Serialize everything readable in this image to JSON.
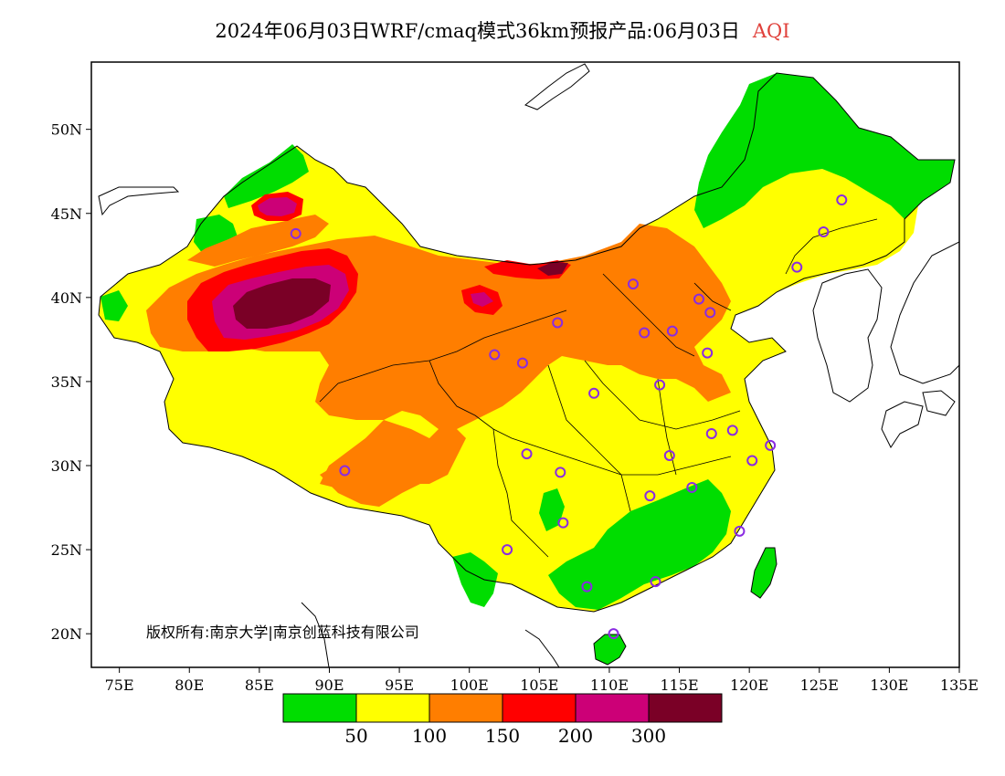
{
  "title": {
    "text": "2024年06月03日WRF/cmaq模式36km预报产品:06月03日",
    "variable": "AQI",
    "variable_color": "#e0403a"
  },
  "map": {
    "extent": {
      "lon_min": 73,
      "lon_max": 135,
      "lat_min": 18,
      "lat_max": 54
    },
    "x_ticks": [
      "75E",
      "80E",
      "85E",
      "90E",
      "95E",
      "100E",
      "105E",
      "110E",
      "115E",
      "120E",
      "125E",
      "130E",
      "135E"
    ],
    "y_ticks": [
      "50N",
      "45N",
      "40N",
      "35N",
      "30N",
      "25N",
      "20N"
    ],
    "copyright": "版权所有:南京大学|南京创蓝科技有限公司"
  },
  "legend": {
    "colors": [
      "#00dd00",
      "#ffff00",
      "#ff7e00",
      "#ff0000",
      "#cc0077",
      "#7a0026"
    ],
    "labels": [
      "50",
      "100",
      "150",
      "200",
      "300"
    ]
  },
  "stations": [
    {
      "lon": 87.6,
      "lat": 43.8
    },
    {
      "lon": 91.1,
      "lat": 29.7
    },
    {
      "lon": 101.8,
      "lat": 36.6
    },
    {
      "lon": 103.8,
      "lat": 36.1
    },
    {
      "lon": 106.3,
      "lat": 38.5
    },
    {
      "lon": 111.7,
      "lat": 40.8
    },
    {
      "lon": 112.5,
      "lat": 37.9
    },
    {
      "lon": 114.5,
      "lat": 38.0
    },
    {
      "lon": 116.4,
      "lat": 39.9
    },
    {
      "lon": 117.2,
      "lat": 39.1
    },
    {
      "lon": 117.0,
      "lat": 36.7
    },
    {
      "lon": 113.6,
      "lat": 34.8
    },
    {
      "lon": 108.9,
      "lat": 34.3
    },
    {
      "lon": 104.1,
      "lat": 30.7
    },
    {
      "lon": 106.5,
      "lat": 29.6
    },
    {
      "lon": 117.3,
      "lat": 31.9
    },
    {
      "lon": 118.8,
      "lat": 32.1
    },
    {
      "lon": 120.2,
      "lat": 30.3
    },
    {
      "lon": 121.5,
      "lat": 31.2
    },
    {
      "lon": 114.3,
      "lat": 30.6
    },
    {
      "lon": 112.9,
      "lat": 28.2
    },
    {
      "lon": 115.9,
      "lat": 28.7
    },
    {
      "lon": 119.3,
      "lat": 26.1
    },
    {
      "lon": 106.7,
      "lat": 26.6
    },
    {
      "lon": 102.7,
      "lat": 25.0
    },
    {
      "lon": 108.4,
      "lat": 22.8
    },
    {
      "lon": 113.3,
      "lat": 23.1
    },
    {
      "lon": 110.3,
      "lat": 20.0
    },
    {
      "lon": 123.4,
      "lat": 41.8
    },
    {
      "lon": 125.3,
      "lat": 43.9
    },
    {
      "lon": 126.6,
      "lat": 45.8
    }
  ]
}
